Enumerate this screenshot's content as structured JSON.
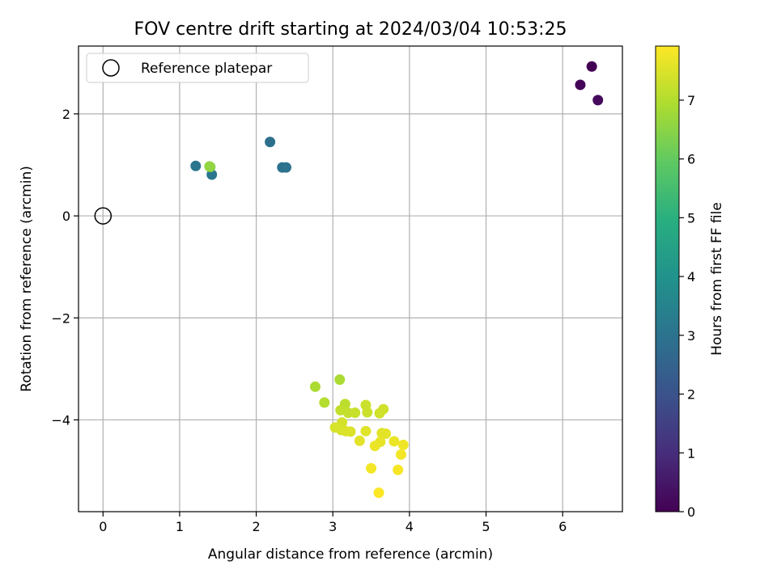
{
  "chart_data": {
    "type": "scatter",
    "title": "FOV centre drift starting at 2024/03/04 10:53:25",
    "xlabel": "Angular distance from reference (arcmin)",
    "ylabel": "Rotation from reference (arcmin)",
    "xlim": [
      -0.32,
      6.78
    ],
    "ylim": [
      -5.8,
      3.33
    ],
    "x_ticks": [
      0,
      1,
      2,
      3,
      4,
      5,
      6
    ],
    "y_ticks": [
      -4,
      -2,
      0,
      2
    ],
    "grid": true,
    "legend": {
      "placement": "top-left",
      "entries": [
        "Reference platepar"
      ]
    },
    "reference_point": {
      "x": 0,
      "y": 0
    },
    "colorbar": {
      "label": "Hours from first FF file",
      "colormap": "viridis",
      "range": [
        0,
        7.92
      ],
      "ticks": [
        0,
        1,
        2,
        3,
        4,
        5,
        6,
        7
      ]
    },
    "points": [
      {
        "x": 6.38,
        "y": 2.93,
        "c": 0.0
      },
      {
        "x": 6.23,
        "y": 2.57,
        "c": 0.1
      },
      {
        "x": 6.46,
        "y": 2.27,
        "c": 0.2
      },
      {
        "x": 2.18,
        "y": 1.45,
        "c": 2.9
      },
      {
        "x": 2.34,
        "y": 0.95,
        "c": 2.95
      },
      {
        "x": 2.39,
        "y": 0.95,
        "c": 3.0
      },
      {
        "x": 1.21,
        "y": 0.98,
        "c": 3.05
      },
      {
        "x": 1.42,
        "y": 0.81,
        "c": 3.1
      },
      {
        "x": 1.4,
        "y": 0.96,
        "c": 6.4
      },
      {
        "x": 1.39,
        "y": 0.97,
        "c": 6.6
      },
      {
        "x": 3.09,
        "y": -3.21,
        "c": 6.9
      },
      {
        "x": 2.77,
        "y": -3.35,
        "c": 6.9
      },
      {
        "x": 2.89,
        "y": -3.66,
        "c": 7.0
      },
      {
        "x": 3.16,
        "y": -3.69,
        "c": 7.1
      },
      {
        "x": 3.1,
        "y": -3.81,
        "c": 7.2
      },
      {
        "x": 3.2,
        "y": -3.86,
        "c": 7.2
      },
      {
        "x": 3.29,
        "y": -3.86,
        "c": 7.25
      },
      {
        "x": 3.43,
        "y": -3.71,
        "c": 7.3
      },
      {
        "x": 3.45,
        "y": -3.85,
        "c": 7.3
      },
      {
        "x": 3.61,
        "y": -3.87,
        "c": 7.35
      },
      {
        "x": 3.66,
        "y": -3.79,
        "c": 7.35
      },
      {
        "x": 3.12,
        "y": -4.05,
        "c": 7.4
      },
      {
        "x": 3.03,
        "y": -4.15,
        "c": 7.45
      },
      {
        "x": 3.11,
        "y": -4.2,
        "c": 7.45
      },
      {
        "x": 3.17,
        "y": -4.22,
        "c": 7.5
      },
      {
        "x": 3.23,
        "y": -4.23,
        "c": 7.5
      },
      {
        "x": 3.43,
        "y": -4.22,
        "c": 7.55
      },
      {
        "x": 3.64,
        "y": -4.26,
        "c": 7.55
      },
      {
        "x": 3.69,
        "y": -4.27,
        "c": 7.6
      },
      {
        "x": 3.35,
        "y": -4.41,
        "c": 7.6
      },
      {
        "x": 3.62,
        "y": -4.43,
        "c": 7.65
      },
      {
        "x": 3.55,
        "y": -4.51,
        "c": 7.7
      },
      {
        "x": 3.8,
        "y": -4.42,
        "c": 7.7
      },
      {
        "x": 3.92,
        "y": -4.49,
        "c": 7.75
      },
      {
        "x": 3.89,
        "y": -4.68,
        "c": 7.8
      },
      {
        "x": 3.5,
        "y": -4.95,
        "c": 7.8
      },
      {
        "x": 3.85,
        "y": -4.98,
        "c": 7.85
      },
      {
        "x": 3.6,
        "y": -5.43,
        "c": 7.9
      }
    ]
  }
}
